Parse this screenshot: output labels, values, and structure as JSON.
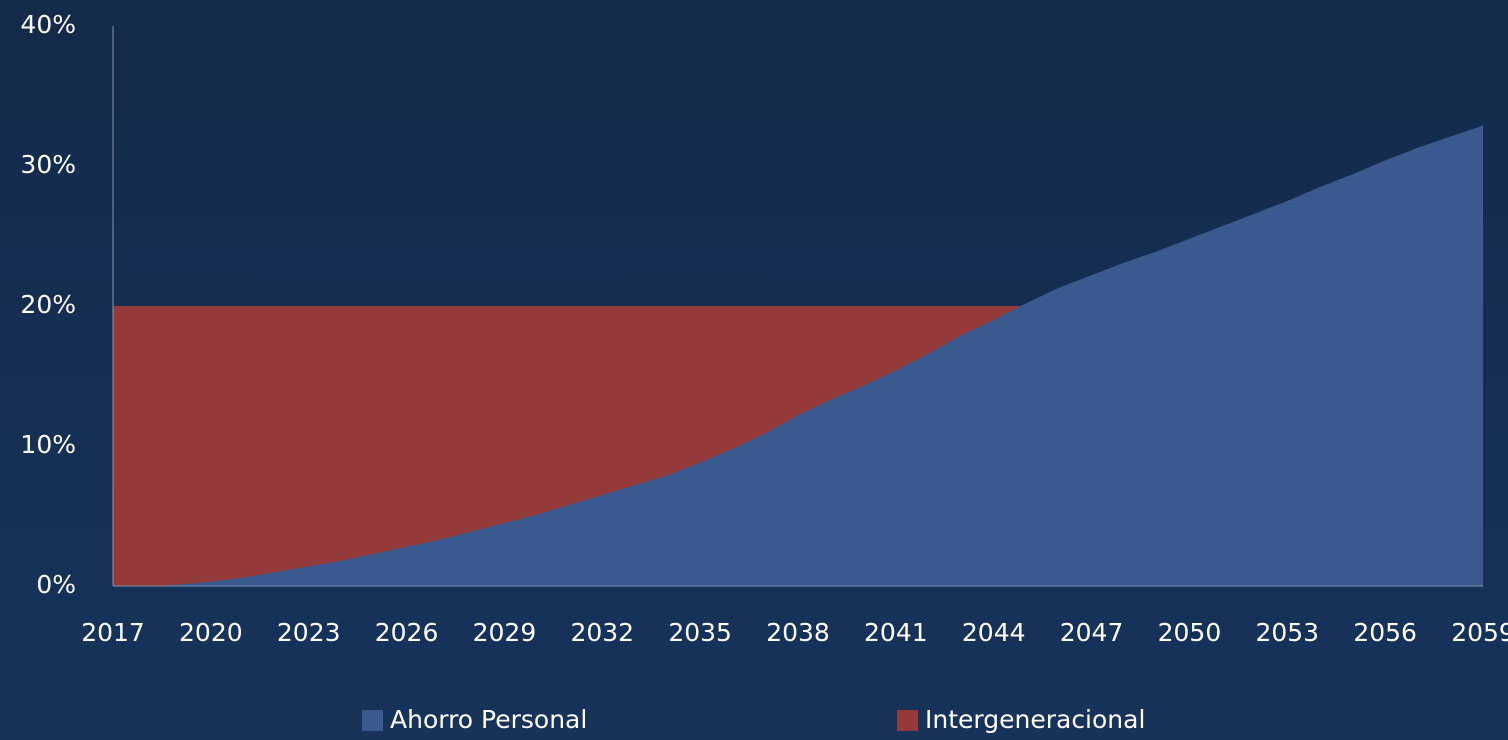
{
  "chart_data": {
    "type": "area",
    "x": [
      2017,
      2018,
      2019,
      2020,
      2021,
      2022,
      2023,
      2024,
      2025,
      2026,
      2027,
      2028,
      2029,
      2030,
      2031,
      2032,
      2033,
      2034,
      2035,
      2036,
      2037,
      2038,
      2039,
      2040,
      2041,
      2042,
      2043,
      2044,
      2045,
      2046,
      2047,
      2048,
      2049,
      2050,
      2051,
      2052,
      2053,
      2054,
      2055,
      2056,
      2057,
      2058,
      2059
    ],
    "series": [
      {
        "name": "Intergeneracional",
        "color": "#943a3a",
        "values": [
          20,
          20,
          20,
          20,
          20,
          20,
          20,
          20,
          20,
          20,
          20,
          20,
          20,
          20,
          20,
          20,
          20,
          20,
          20,
          20,
          20,
          20,
          20,
          20,
          20,
          20,
          20,
          20,
          20,
          null,
          null,
          null,
          null,
          null,
          null,
          null,
          null,
          null,
          null,
          null,
          null,
          null,
          null
        ]
      },
      {
        "name": "Ahorro Personal",
        "color": "#3a5a8f",
        "values": [
          0,
          0,
          0.1,
          0.3,
          0.6,
          1.0,
          1.4,
          1.8,
          2.3,
          2.8,
          3.3,
          3.9,
          4.5,
          5.1,
          5.8,
          6.5,
          7.2,
          7.9,
          8.8,
          9.8,
          10.9,
          12.2,
          13.3,
          14.3,
          15.4,
          16.6,
          17.9,
          19.0,
          20.2,
          21.3,
          22.2,
          23.1,
          23.9,
          24.8,
          25.7,
          26.6,
          27.5,
          28.5,
          29.4,
          30.4,
          31.3,
          32.1,
          32.9
        ]
      }
    ],
    "legend_order": [
      "Ahorro Personal",
      "Intergeneracional"
    ],
    "xlim": [
      2017,
      2059
    ],
    "xticks": [
      2017,
      2020,
      2023,
      2026,
      2029,
      2032,
      2035,
      2038,
      2041,
      2044,
      2047,
      2050,
      2053,
      2056,
      2059
    ],
    "ylim": [
      0,
      40
    ],
    "yticks": [
      {
        "value": 0,
        "label": "0%"
      },
      {
        "value": 10,
        "label": "10%"
      },
      {
        "value": 20,
        "label": "20%"
      },
      {
        "value": 30,
        "label": "30%"
      },
      {
        "value": 40,
        "label": "40%"
      }
    ],
    "legend": "bottom"
  }
}
